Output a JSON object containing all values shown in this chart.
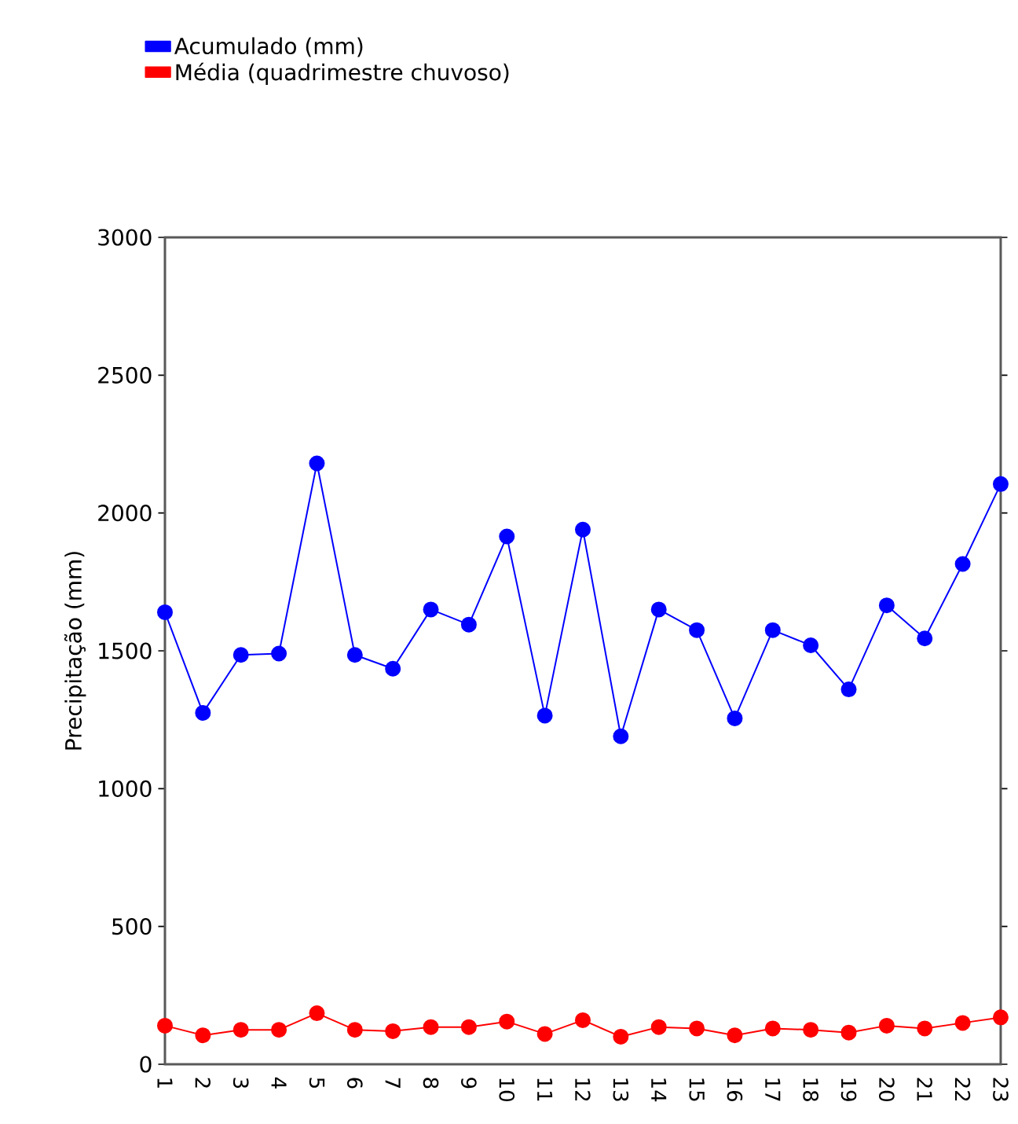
{
  "chart_data": {
    "type": "line",
    "ylabel": "Precipitação (mm)",
    "categories": [
      "1",
      "2",
      "3",
      "4",
      "5",
      "6",
      "7",
      "8",
      "9",
      "10",
      "11",
      "12",
      "13",
      "14",
      "15",
      "16",
      "17",
      "18",
      "19",
      "20",
      "21",
      "22",
      "23"
    ],
    "series": [
      {
        "name": "Acumulado (mm)",
        "color": "#0000ff",
        "values": [
          1640,
          1275,
          1485,
          1490,
          2180,
          1485,
          1435,
          1650,
          1595,
          1915,
          1265,
          1940,
          1190,
          1650,
          1575,
          1255,
          1575,
          1520,
          1360,
          1665,
          1545,
          1815,
          2105
        ]
      },
      {
        "name": "Média (quadrimestre chuvoso)",
        "color": "#ff0000",
        "values": [
          140,
          105,
          125,
          125,
          185,
          125,
          120,
          135,
          135,
          155,
          110,
          160,
          100,
          135,
          130,
          105,
          130,
          125,
          115,
          140,
          130,
          150,
          170
        ]
      }
    ],
    "ylim": [
      0,
      3000
    ],
    "yticks": [
      0,
      500,
      1000,
      1500,
      2000,
      2500,
      3000
    ],
    "grid": false,
    "legend": "top left",
    "marker": "circle",
    "line_style": "solid"
  }
}
